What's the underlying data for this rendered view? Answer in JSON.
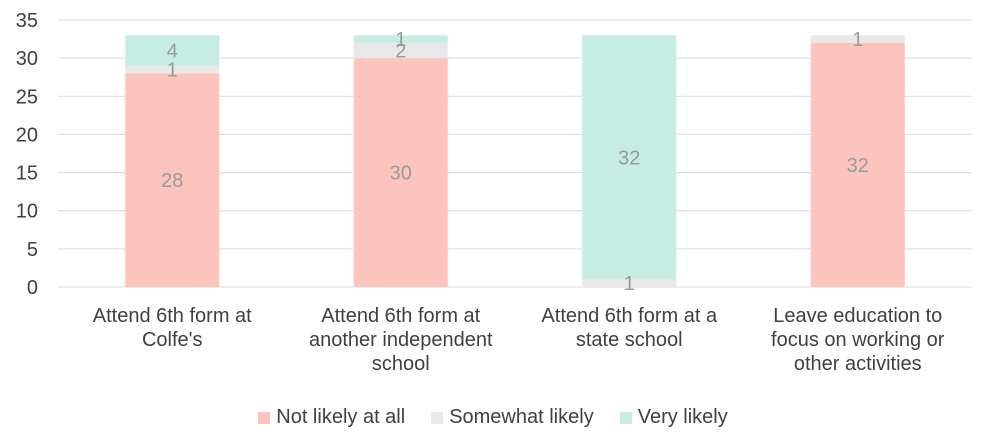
{
  "chart_data": {
    "type": "bar",
    "stacked": true,
    "categories": [
      [
        "Attend 6th form at",
        "Colfe's"
      ],
      [
        "Attend 6th form at",
        "another independent",
        "school"
      ],
      [
        "Attend 6th form at a",
        "state school"
      ],
      [
        "Leave education to",
        "focus on working or",
        "other activities"
      ]
    ],
    "series": [
      {
        "name": "Not likely at all",
        "color": "#fbc5be",
        "values": [
          28,
          30,
          0,
          32
        ]
      },
      {
        "name": "Somewhat likely",
        "color": "#e8e8e8",
        "values": [
          1,
          2,
          1,
          1
        ]
      },
      {
        "name": "Very likely",
        "color": "#c6ece3",
        "values": [
          4,
          1,
          32,
          0
        ]
      }
    ],
    "ylim": [
      0,
      35
    ],
    "yticks": [
      0,
      5,
      10,
      15,
      20,
      25,
      30,
      35
    ],
    "grid": true,
    "legend": "bottom",
    "xlabel": "",
    "ylabel": ""
  }
}
